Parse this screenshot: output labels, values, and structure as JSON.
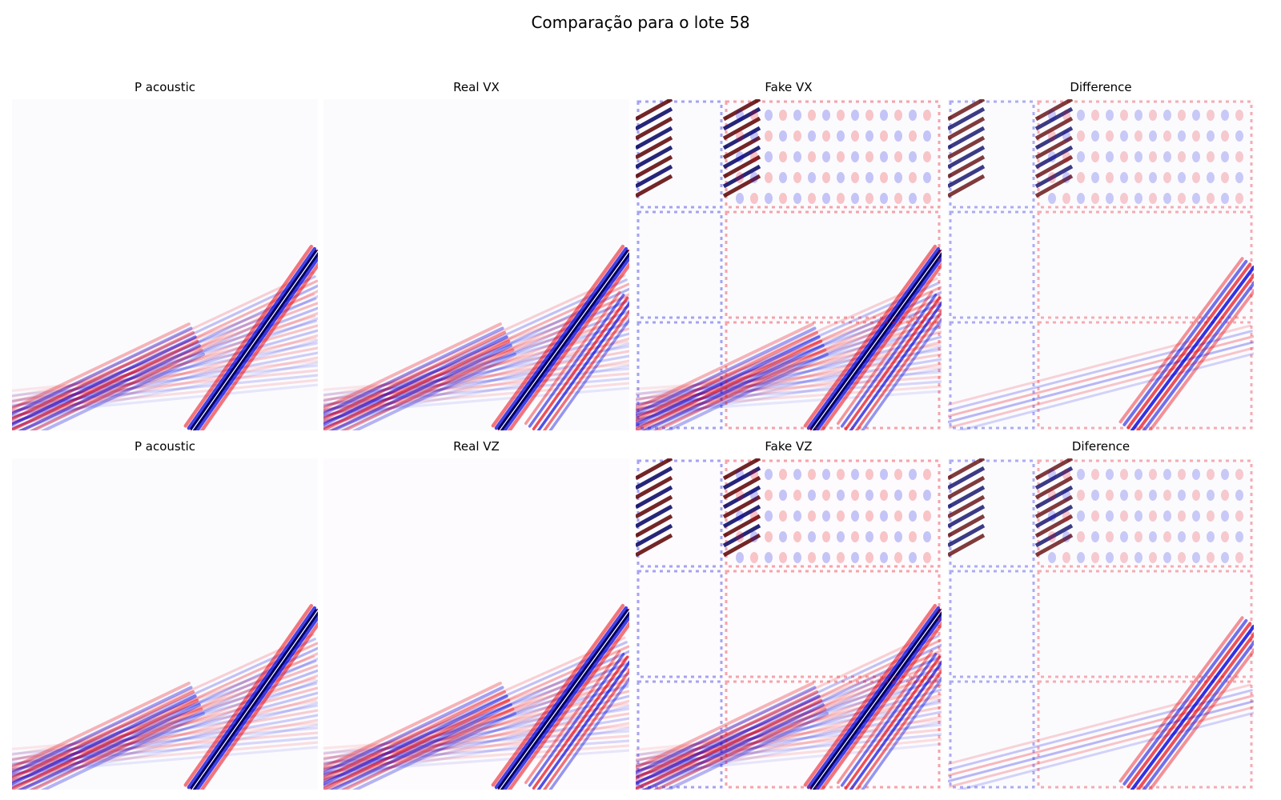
{
  "figure": {
    "title": "Comparação para o lote 58"
  },
  "colors": {
    "positive": "#e8000b",
    "negative": "#0000dd",
    "extreme_pos": "#5a0000",
    "extreme_neg": "#000060",
    "center": "#ffffff"
  },
  "chart_data": [
    {
      "type": "heatmap",
      "title": "P acoustic",
      "colormap": "seismic",
      "axes": "off",
      "pattern": "wavefield"
    },
    {
      "type": "heatmap",
      "title": "Real VX",
      "colormap": "seismic",
      "axes": "off",
      "pattern": "wavefield"
    },
    {
      "type": "heatmap",
      "title": "Fake VX",
      "colormap": "seismic",
      "axes": "off",
      "pattern": "wavefield-with-tile-artifacts"
    },
    {
      "type": "heatmap",
      "title": "Difference",
      "colormap": "seismic",
      "axes": "off",
      "pattern": "difference"
    },
    {
      "type": "heatmap",
      "title": "P acoustic",
      "colormap": "seismic",
      "axes": "off",
      "pattern": "wavefield"
    },
    {
      "type": "heatmap",
      "title": "Real VZ",
      "colormap": "seismic",
      "axes": "off",
      "pattern": "wavefield"
    },
    {
      "type": "heatmap",
      "title": "Fake VZ",
      "colormap": "seismic",
      "axes": "off",
      "pattern": "wavefield-with-tile-artifacts"
    },
    {
      "type": "heatmap",
      "title": "Diference",
      "colormap": "seismic",
      "axes": "off",
      "pattern": "difference"
    }
  ]
}
